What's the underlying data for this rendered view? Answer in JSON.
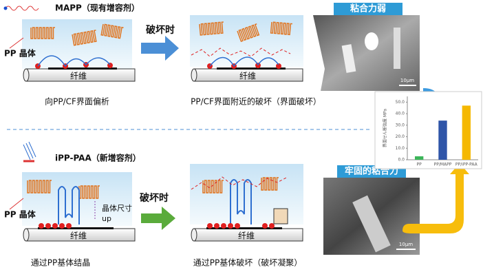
{
  "top": {
    "legend": "MAPP（现有增容剂）",
    "crystal_label": "PP 晶体",
    "fiber_left": "纤维",
    "fiber_right": "纤维",
    "arrow_label": "破坏时",
    "caption_left": "向PP/CF界面偏析",
    "caption_right": "PP/CF界面附近的破坏（界面破坏）",
    "photo_title": "粘合力弱",
    "photo_scale": "10μm"
  },
  "bottom": {
    "legend": "iPP-PAA（新增容剂）",
    "crystal_label": "PP 晶体",
    "size_label": "晶体尺寸",
    "size_label2": "up",
    "fiber_left": "纤维",
    "fiber_right": "纤维",
    "arrow_label": "破坏时",
    "caption_left": "通过PP基体结晶",
    "caption_right": "通过PP基体破坏（破坏凝聚）",
    "photo_title": "牢固的粘合力",
    "photo_scale": "10μm"
  },
  "chart_data": {
    "type": "bar",
    "y_label": "界面せん断強度 MPa",
    "categories": [
      "PP",
      "PP/MAPP",
      "PP/iPP-PAA"
    ],
    "series": [
      {
        "name": null,
        "colors": [
          "#3cb55a",
          "#2f55a8",
          "#f5b800"
        ],
        "values": [
          3,
          34,
          47
        ]
      }
    ],
    "ylim": [
      0,
      55
    ],
    "yticks": [
      {
        "value": 0,
        "label": "0.0"
      },
      {
        "value": 10,
        "label": "10.0"
      },
      {
        "value": 20,
        "label": "20.0"
      },
      {
        "value": 30,
        "label": "30.0"
      },
      {
        "value": 40,
        "label": "40.0"
      },
      {
        "value": 50,
        "label": "50.0"
      }
    ]
  }
}
